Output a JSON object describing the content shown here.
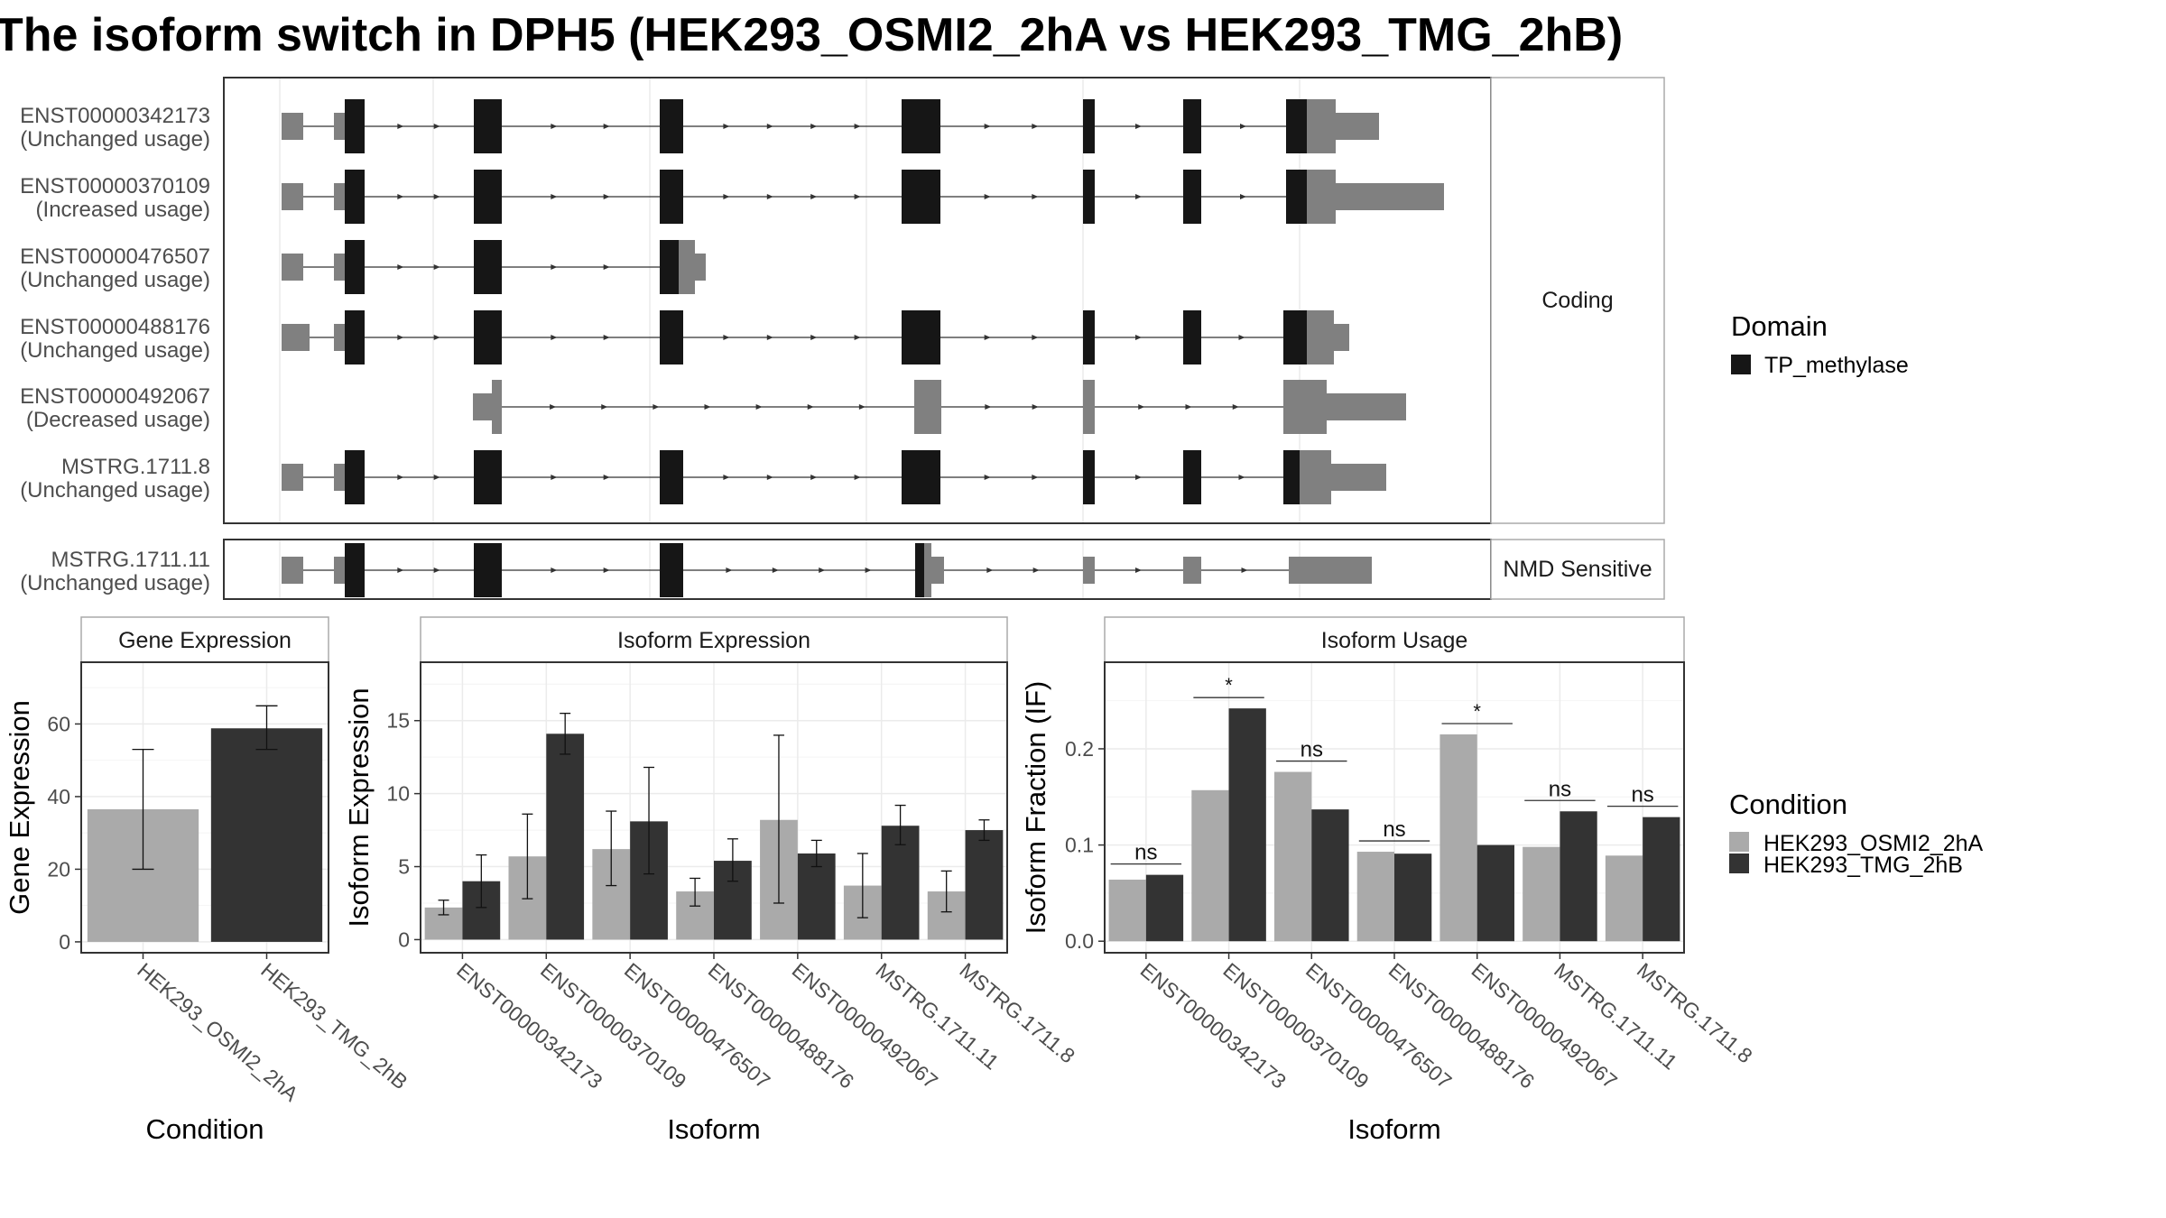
{
  "title": "The isoform switch in DPH5 (HEK293_OSMI2_2hA vs HEK293_TMG_2hB)",
  "colors": {
    "domain": "#161616",
    "utr": "#808080",
    "cond_a": "#aaaaaa",
    "cond_b": "#333333",
    "panel_border": "#333333",
    "strip_fill": "#ffffff",
    "grid": "#ebebeb"
  },
  "structure": {
    "facets": [
      "Coding",
      "NMD Sensitive"
    ],
    "transcripts": [
      {
        "id": "ENST00000342173",
        "status": "(Unchanged usage)",
        "facet": "Coding"
      },
      {
        "id": "ENST00000370109",
        "status": "(Increased usage)",
        "facet": "Coding"
      },
      {
        "id": "ENST00000476507",
        "status": "(Unchanged usage)",
        "facet": "Coding"
      },
      {
        "id": "ENST00000488176",
        "status": "(Unchanged usage)",
        "facet": "Coding"
      },
      {
        "id": "ENST00000492067",
        "status": "(Decreased usage)",
        "facet": "Coding"
      },
      {
        "id": "MSTRG.1711.8",
        "status": "(Unchanged usage)",
        "facet": "Coding"
      },
      {
        "id": "MSTRG.1711.11",
        "status": "(Unchanged usage)",
        "facet": "NMD Sensitive"
      }
    ],
    "legend_title": "Domain",
    "legend_item": "TP_methylase"
  },
  "chart_data": [
    {
      "type": "bar",
      "title": "Gene Expression",
      "xlabel": "Condition",
      "ylabel": "Gene Expression",
      "categories": [
        "HEK293_OSMI2_2hA",
        "HEK293_TMG_2hB"
      ],
      "values": [
        36.5,
        58.8
      ],
      "errors": [
        [
          20,
          53
        ],
        [
          53,
          65
        ]
      ],
      "ylim": [
        -3,
        77
      ],
      "yticks": [
        0,
        20,
        40,
        60
      ]
    },
    {
      "type": "bar",
      "title": "Isoform Expression",
      "xlabel": "Isoform",
      "ylabel": "Isoform Expression",
      "categories": [
        "ENST00000342173",
        "ENST00000370109",
        "ENST00000476507",
        "ENST00000488176",
        "ENST00000492067",
        "MSTRG.1711.11",
        "MSTRG.1711.8"
      ],
      "series": [
        {
          "name": "HEK293_OSMI2_2hA",
          "values": [
            2.2,
            5.7,
            6.2,
            3.3,
            8.2,
            3.7,
            3.3
          ],
          "errors": [
            [
              1.7,
              2.7
            ],
            [
              2.8,
              8.6
            ],
            [
              3.7,
              8.8
            ],
            [
              2.3,
              4.2
            ],
            [
              2.5,
              14.0
            ],
            [
              1.5,
              5.9
            ],
            [
              1.9,
              4.7
            ]
          ]
        },
        {
          "name": "HEK293_TMG_2hB",
          "values": [
            4.0,
            14.1,
            8.1,
            5.4,
            5.9,
            7.8,
            7.5
          ],
          "errors": [
            [
              2.2,
              5.8
            ],
            [
              12.7,
              15.5
            ],
            [
              4.5,
              11.8
            ],
            [
              4.0,
              6.9
            ],
            [
              5.0,
              6.8
            ],
            [
              6.5,
              9.2
            ],
            [
              6.8,
              8.2
            ]
          ]
        }
      ],
      "ylim": [
        -0.9,
        19
      ],
      "yticks": [
        0,
        5,
        10,
        15
      ]
    },
    {
      "type": "bar",
      "title": "Isoform Usage",
      "xlabel": "Isoform",
      "ylabel": "Isoform Fraction (IF)",
      "categories": [
        "ENST00000342173",
        "ENST00000370109",
        "ENST00000476507",
        "ENST00000488176",
        "ENST00000492067",
        "MSTRG.1711.11",
        "MSTRG.1711.8"
      ],
      "series": [
        {
          "name": "HEK293_OSMI2_2hA",
          "values": [
            0.064,
            0.157,
            0.176,
            0.093,
            0.215,
            0.098,
            0.089
          ]
        },
        {
          "name": "HEK293_TMG_2hB",
          "values": [
            0.069,
            0.242,
            0.137,
            0.091,
            0.1,
            0.135,
            0.129
          ]
        }
      ],
      "significance": [
        "ns",
        "*",
        "ns",
        "ns",
        "*",
        "ns",
        "ns"
      ],
      "ylim": [
        -0.012,
        0.29
      ],
      "yticks": [
        "0.0",
        "0.1",
        "0.2"
      ]
    }
  ],
  "condition_legend": {
    "title": "Condition",
    "items": [
      "HEK293_OSMI2_2hA",
      "HEK293_TMG_2hB"
    ]
  }
}
